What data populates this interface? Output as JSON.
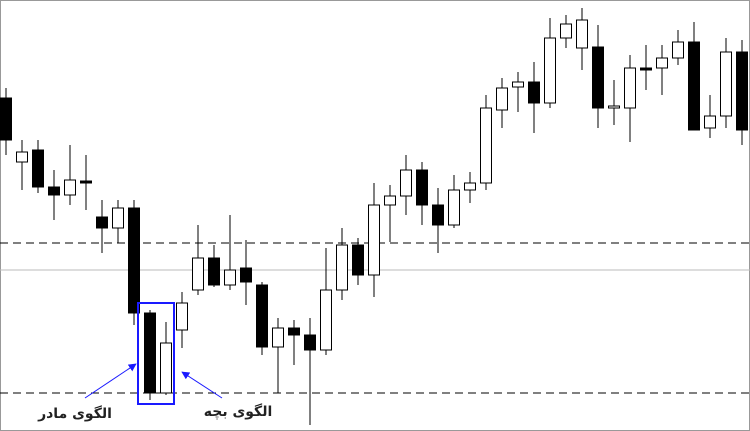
{
  "chart_data": {
    "type": "candlestick",
    "ylim": [
      0,
      431
    ],
    "up_color": "#ffffff",
    "down_color": "#000000",
    "open": [
      333,
      269,
      281,
      244,
      236,
      250,
      214,
      203,
      223,
      118,
      38,
      101,
      141,
      173,
      146,
      163,
      146,
      84,
      103,
      96,
      81,
      141,
      186,
      156,
      226,
      235,
      261,
      226,
      206,
      241,
      248,
      321,
      344,
      349,
      328,
      393,
      383,
      384,
      323,
      323,
      363,
      363,
      373,
      389,
      303,
      315,
      379
    ],
    "high": [
      343,
      291,
      291,
      261,
      286,
      276,
      231,
      231,
      231,
      121,
      109,
      139,
      206,
      186,
      216,
      191,
      149,
      113,
      111,
      113,
      183,
      203,
      193,
      248,
      246,
      276,
      269,
      243,
      256,
      259,
      336,
      353,
      359,
      369,
      413,
      416,
      423,
      406,
      351,
      376,
      386,
      386,
      401,
      409,
      336,
      393,
      391
    ],
    "low": [
      276,
      241,
      238,
      211,
      226,
      221,
      178,
      188,
      106,
      31,
      36,
      83,
      136,
      144,
      141,
      126,
      76,
      38,
      66,
      6,
      76,
      131,
      146,
      134,
      189,
      216,
      206,
      178,
      203,
      228,
      241,
      303,
      319,
      298,
      323,
      383,
      361,
      303,
      306,
      289,
      341,
      336,
      366,
      301,
      293,
      303,
      286
    ],
    "close": [
      291,
      279,
      244,
      236,
      251,
      248,
      203,
      223,
      118,
      38,
      88,
      128,
      173,
      146,
      161,
      149,
      84,
      103,
      96,
      81,
      141,
      186,
      156,
      226,
      235,
      261,
      226,
      206,
      241,
      248,
      323,
      343,
      349,
      328,
      393,
      407,
      411,
      323,
      325,
      363,
      361,
      373,
      389,
      301,
      315,
      379,
      301
    ],
    "levels": [
      {
        "value": 188,
        "style": "dashed"
      },
      {
        "value": 161,
        "style": "solid"
      },
      {
        "value": 38,
        "style": "dashed"
      }
    ],
    "annotations": [
      {
        "text": "الگوی مادر"
      },
      {
        "text": "الگوی بچه"
      }
    ]
  }
}
